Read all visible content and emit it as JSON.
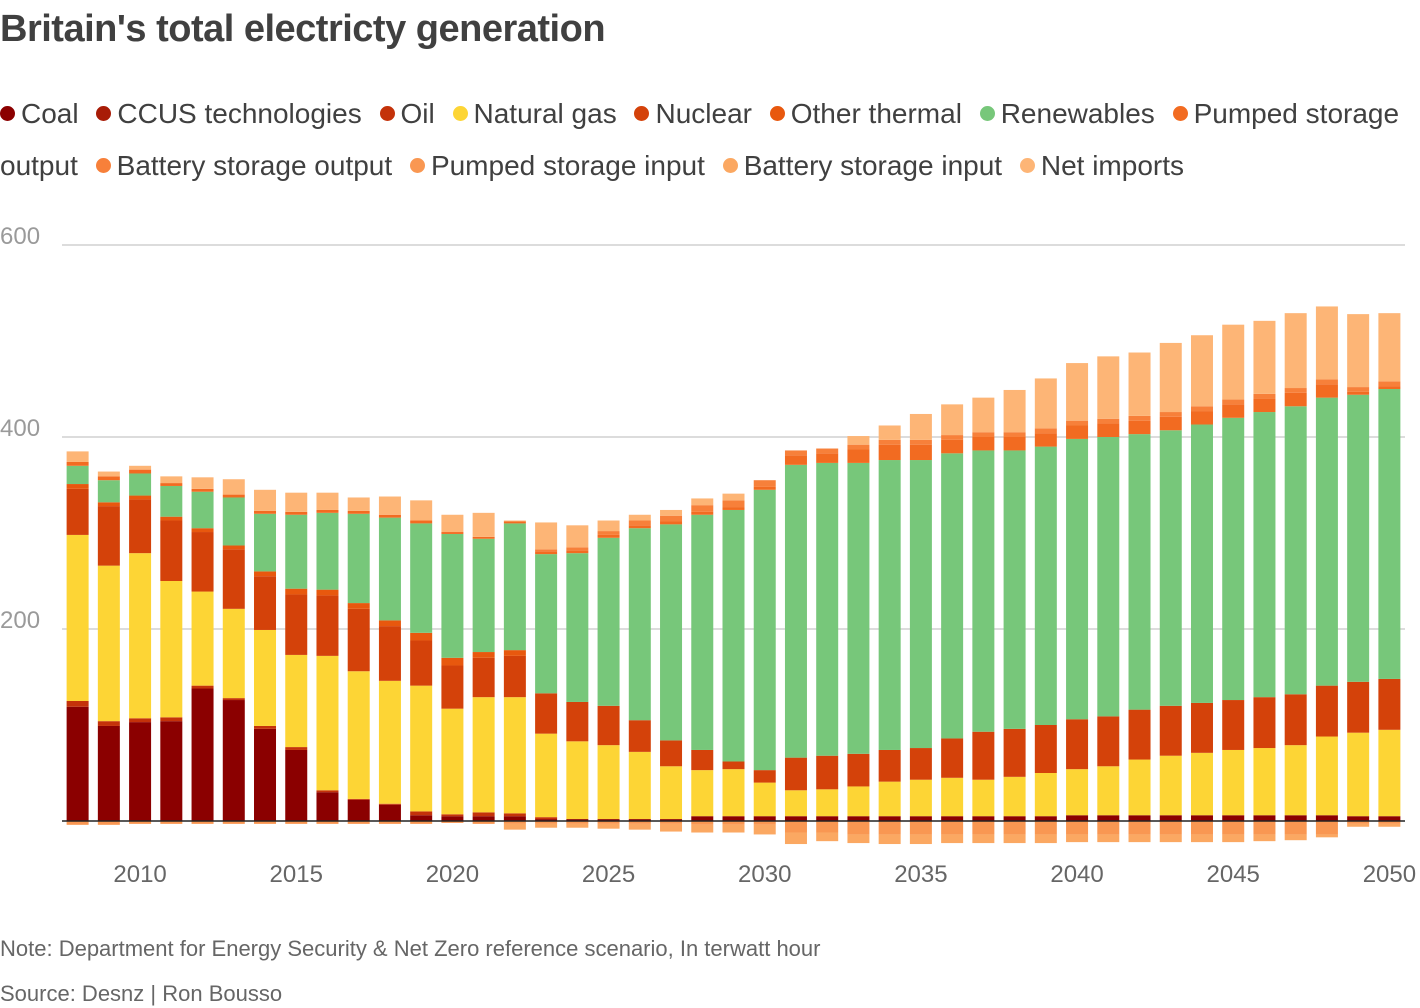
{
  "title": "Britain's total electricty generation",
  "note": "Note: Department for Energy Security & Net Zero reference scenario, In terwatt hour",
  "source": "Source: Desnz | Ron Bousso",
  "legend": [
    {
      "label": "Coal",
      "color": "#8b0000"
    },
    {
      "label": "CCUS technologies",
      "color": "#a81c07"
    },
    {
      "label": "Oil",
      "color": "#c4320a"
    },
    {
      "label": "Natural gas",
      "color": "#fdd535"
    },
    {
      "label": "Nuclear",
      "color": "#d4420a"
    },
    {
      "label": "Other thermal",
      "color": "#e8580e"
    },
    {
      "label": "Renewables",
      "color": "#77c77a"
    },
    {
      "label": "Pumped storage output",
      "color": "#f26b21"
    },
    {
      "label": "Battery storage output",
      "color": "#f7803a"
    },
    {
      "label": "Pumped storage input",
      "color": "#f99752"
    },
    {
      "label": "Battery storage input",
      "color": "#fba862"
    },
    {
      "label": "Net imports",
      "color": "#fdb576"
    }
  ],
  "chart_data": {
    "type": "bar",
    "stacked": true,
    "title": "Britain's total electricty generation",
    "ylabel": "terwatt hour",
    "ylim": [
      -30,
      600
    ],
    "yticks": [
      200,
      400,
      600
    ],
    "xticks": [
      2010,
      2015,
      2020,
      2025,
      2030,
      2035,
      2040,
      2045,
      2050
    ],
    "categories": [
      2008,
      2009,
      2010,
      2011,
      2012,
      2013,
      2014,
      2015,
      2016,
      2017,
      2018,
      2019,
      2020,
      2021,
      2022,
      2023,
      2024,
      2025,
      2026,
      2027,
      2028,
      2029,
      2030,
      2031,
      2032,
      2033,
      2034,
      2035,
      2036,
      2037,
      2038,
      2039,
      2040,
      2041,
      2042,
      2043,
      2044,
      2045,
      2046,
      2047,
      2048,
      2049,
      2050
    ],
    "series": [
      {
        "name": "Coal",
        "color": "#8b0000",
        "values": [
          119,
          99,
          103,
          104,
          138,
          126,
          96,
          74,
          30,
          22,
          17,
          6,
          5,
          5,
          5,
          2,
          2,
          2,
          2,
          2,
          5,
          5,
          5,
          5,
          5,
          5,
          5,
          5,
          5,
          5,
          5,
          5,
          6,
          6,
          6,
          6,
          6,
          6,
          6,
          6,
          6,
          5,
          5
        ]
      },
      {
        "name": "CCUS technologies",
        "color": "#a81c07",
        "values": [
          0,
          0,
          0,
          0,
          0,
          0,
          0,
          0,
          0,
          0,
          0,
          0,
          0,
          0,
          0,
          0,
          0,
          0,
          0,
          0,
          0,
          0,
          0,
          0,
          0,
          0,
          0,
          0,
          0,
          0,
          0,
          0,
          0,
          0,
          0,
          0,
          0,
          0,
          0,
          0,
          0,
          0,
          0
        ]
      },
      {
        "name": "Oil",
        "color": "#c4320a",
        "values": [
          6,
          5,
          4,
          4,
          3,
          2,
          3,
          3,
          2,
          1,
          1,
          4,
          2,
          4,
          3,
          2,
          0,
          0,
          0,
          0,
          0,
          0,
          0,
          0,
          0,
          0,
          0,
          0,
          0,
          0,
          0,
          0,
          0,
          0,
          0,
          0,
          0,
          0,
          0,
          0,
          0,
          0,
          0
        ]
      },
      {
        "name": "Natural gas",
        "color": "#fdd535",
        "values": [
          173,
          162,
          172,
          142,
          98,
          93,
          100,
          96,
          140,
          133,
          128,
          131,
          110,
          120,
          121,
          87,
          81,
          77,
          70,
          55,
          48,
          49,
          35,
          27,
          28,
          31,
          36,
          38,
          40,
          38,
          41,
          45,
          48,
          51,
          58,
          62,
          65,
          68,
          70,
          73,
          82,
          87,
          90
        ]
      },
      {
        "name": "Nuclear",
        "color": "#d4420a",
        "values": [
          48,
          62,
          56,
          63,
          62,
          62,
          56,
          63,
          63,
          65,
          57,
          47,
          45,
          41,
          43,
          42,
          41,
          41,
          33,
          27,
          21,
          8,
          13,
          34,
          35,
          34,
          33,
          33,
          41,
          50,
          50,
          50,
          52,
          52,
          52,
          52,
          52,
          52,
          53,
          53,
          53,
          53,
          53
        ]
      },
      {
        "name": "Other thermal",
        "color": "#e8580e",
        "values": [
          5,
          4,
          4,
          4,
          4,
          4,
          5,
          6,
          6,
          6,
          6,
          8,
          8,
          6,
          6,
          0,
          0,
          0,
          0,
          0,
          0,
          0,
          0,
          0,
          0,
          0,
          0,
          0,
          0,
          0,
          0,
          0,
          0,
          0,
          0,
          0,
          0,
          0,
          0,
          0,
          0,
          0,
          0
        ]
      },
      {
        "name": "Renewables",
        "color": "#77c77a",
        "values": [
          19,
          23,
          23,
          32,
          38,
          50,
          60,
          77,
          80,
          93,
          107,
          114,
          129,
          118,
          132,
          145,
          155,
          175,
          200,
          225,
          245,
          262,
          292,
          305,
          305,
          303,
          302,
          300,
          297,
          293,
          290,
          290,
          292,
          291,
          287,
          287,
          290,
          294,
          297,
          300,
          300,
          299,
          302
        ]
      },
      {
        "name": "Pumped storage output",
        "color": "#f26b21",
        "values": [
          4,
          4,
          4,
          3,
          3,
          3,
          3,
          3,
          3,
          3,
          3,
          3,
          2,
          2,
          2,
          3,
          3,
          3,
          3,
          3,
          3,
          3,
          3,
          10,
          10,
          14,
          16,
          16,
          14,
          14,
          14,
          14,
          14,
          14,
          14,
          14,
          14,
          14,
          14,
          14,
          14,
          3,
          3
        ]
      },
      {
        "name": "Battery storage output",
        "color": "#f7803a",
        "values": [
          0,
          0,
          0,
          0,
          0,
          0,
          0,
          0,
          0,
          0,
          0,
          0,
          0,
          0,
          0,
          2,
          3,
          4,
          5,
          6,
          7,
          7,
          7,
          5,
          5,
          5,
          5,
          5,
          5,
          5,
          5,
          5,
          5,
          5,
          5,
          5,
          5,
          5,
          5,
          5,
          5,
          5,
          5
        ]
      },
      {
        "name": "Pumped storage input",
        "color": "#f99752",
        "values": [
          -4,
          -4,
          -3,
          -3,
          -3,
          -3,
          -3,
          -3,
          -3,
          -3,
          -3,
          -3,
          -2,
          -3,
          -3,
          -3,
          -3,
          -3,
          -3,
          -3,
          -4,
          -4,
          -4,
          -12,
          -12,
          -14,
          -14,
          -14,
          -14,
          -14,
          -14,
          -14,
          -14,
          -14,
          -14,
          -14,
          -14,
          -14,
          -14,
          -14,
          -14,
          -3,
          -3
        ]
      },
      {
        "name": "Battery storage input",
        "color": "#fba862",
        "values": [
          0,
          0,
          0,
          0,
          0,
          0,
          0,
          0,
          0,
          0,
          0,
          0,
          0,
          0,
          -6,
          -4,
          -4,
          -5,
          -6,
          -8,
          -8,
          -8,
          -10,
          -12,
          -9,
          -9,
          -10,
          -10,
          -9,
          -9,
          -9,
          -9,
          -8,
          -8,
          -8,
          -8,
          -8,
          -8,
          -7,
          -6,
          -3,
          -3,
          -3
        ]
      },
      {
        "name": "Net imports",
        "color": "#fdb576",
        "values": [
          11,
          5,
          4,
          7,
          12,
          16,
          22,
          20,
          18,
          14,
          19,
          21,
          18,
          25,
          1,
          28,
          23,
          11,
          6,
          6,
          7,
          7,
          0,
          0,
          0,
          9,
          15,
          27,
          32,
          36,
          44,
          52,
          60,
          65,
          66,
          72,
          74,
          78,
          76,
          78,
          76,
          76,
          71
        ]
      }
    ]
  }
}
